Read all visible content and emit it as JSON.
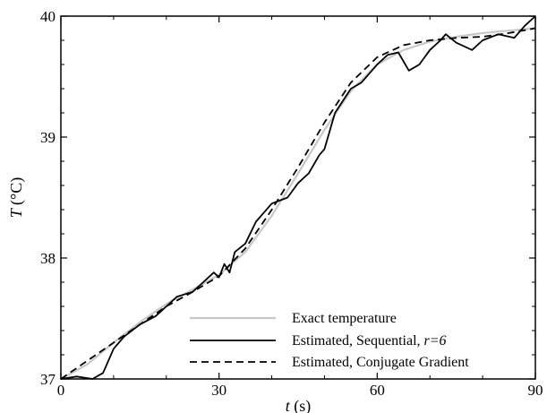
{
  "chart_data": {
    "type": "line",
    "title": "",
    "xlabel": "t",
    "xlabel_unit": "(s)",
    "ylabel": "T",
    "ylabel_unit": "(°C)",
    "xlim": [
      0,
      90
    ],
    "ylim": [
      37,
      40
    ],
    "x_ticks": [
      0,
      30,
      60,
      90
    ],
    "y_ticks": [
      37,
      38,
      39,
      40
    ],
    "grid": false,
    "legend_position": "bottom-right",
    "series": [
      {
        "name": "Exact temperature",
        "style": "solid",
        "color": "#c8c8c8",
        "x": [
          0,
          5,
          10,
          15,
          20,
          25,
          30,
          35,
          40,
          45,
          50,
          55,
          60,
          65,
          70,
          75,
          80,
          85,
          90
        ],
        "y": [
          37.0,
          37.12,
          37.3,
          37.47,
          37.62,
          37.74,
          37.86,
          38.05,
          38.35,
          38.7,
          39.06,
          39.38,
          39.6,
          39.72,
          39.79,
          39.83,
          39.86,
          39.88,
          39.9
        ]
      },
      {
        "name": "Estimated, Sequential, r=6",
        "legend_main": "Estimated, Sequential, ",
        "legend_param": "r=6",
        "style": "solid",
        "color": "#000000",
        "x": [
          0,
          3,
          6,
          8,
          10,
          12,
          15,
          18,
          20,
          22,
          25,
          27,
          29,
          30,
          31,
          32,
          33,
          35,
          37,
          40,
          43,
          45,
          47,
          49,
          50,
          52,
          55,
          57,
          59,
          60,
          62,
          64,
          66,
          68,
          70,
          72,
          73,
          75,
          78,
          80,
          83,
          86,
          88,
          90
        ],
        "y": [
          37.0,
          37.02,
          37.0,
          37.05,
          37.25,
          37.35,
          37.45,
          37.52,
          37.6,
          37.68,
          37.72,
          37.8,
          37.88,
          37.84,
          37.95,
          37.88,
          38.05,
          38.12,
          38.3,
          38.45,
          38.5,
          38.62,
          38.7,
          38.85,
          38.9,
          39.2,
          39.4,
          39.45,
          39.55,
          39.6,
          39.68,
          39.7,
          39.55,
          39.6,
          39.72,
          39.8,
          39.85,
          39.78,
          39.72,
          39.8,
          39.85,
          39.82,
          39.92,
          40.0
        ]
      },
      {
        "name": "Estimated, Conjugate Gradient",
        "style": "dashed",
        "color": "#000000",
        "x": [
          0,
          5,
          10,
          15,
          20,
          25,
          30,
          35,
          40,
          45,
          50,
          55,
          60,
          65,
          70,
          75,
          80,
          85,
          90
        ],
        "y": [
          37.0,
          37.15,
          37.3,
          37.45,
          37.6,
          37.72,
          37.85,
          38.08,
          38.4,
          38.75,
          39.12,
          39.45,
          39.66,
          39.76,
          39.8,
          39.82,
          39.83,
          39.86,
          39.9
        ]
      }
    ]
  }
}
